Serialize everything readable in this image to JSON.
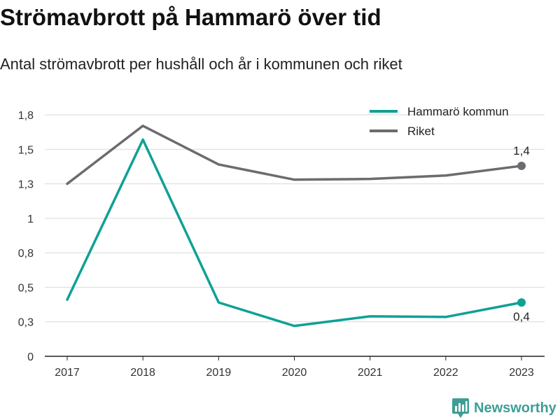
{
  "header": {
    "title": "Strömavbrott på Hammarö över tid",
    "subtitle": "Antal strömavbrott per hushåll och år i kommunen och riket"
  },
  "brand": {
    "name": "Newsworthy",
    "icon": "newsworthy-logo-icon",
    "color": "#3e9e95"
  },
  "chart_data": {
    "type": "line",
    "title": "Strömavbrott på Hammarö över tid",
    "subtitle": "Antal strömavbrott per hushåll och år i kommunen och riket",
    "xlabel": "",
    "ylabel": "",
    "categories": [
      "2017",
      "2018",
      "2019",
      "2020",
      "2021",
      "2022",
      "2023"
    ],
    "ylim": [
      0,
      1.75
    ],
    "yticks": [
      0,
      0.25,
      0.5,
      0.75,
      1,
      1.25,
      1.5,
      1.75
    ],
    "ytick_labels": [
      "0",
      "0,3",
      "0,5",
      "0,8",
      "1",
      "1,3",
      "1,5",
      "1,8"
    ],
    "grid": true,
    "legend_position": "top-right",
    "series": [
      {
        "name": "Hammarö kommun",
        "color": "#0fa195",
        "values": [
          0.41,
          1.57,
          0.39,
          0.22,
          0.29,
          0.285,
          0.39
        ],
        "end_label": "0,4",
        "end_label_position": "below"
      },
      {
        "name": "Riket",
        "color": "#6b6b70",
        "values": [
          1.25,
          1.67,
          1.39,
          1.28,
          1.285,
          1.31,
          1.38
        ],
        "end_label": "1,4",
        "end_label_position": "above"
      }
    ]
  }
}
